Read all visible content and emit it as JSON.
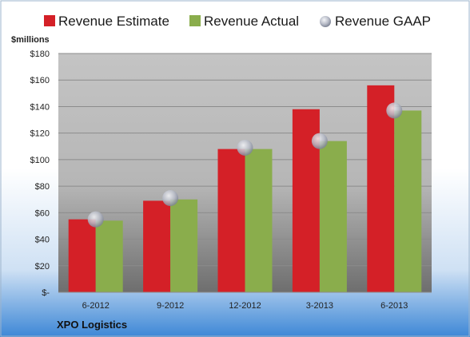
{
  "colors": {
    "estimate": "#d42027",
    "actual": "#8aad4c",
    "gaap_marker": "#b8bcc8",
    "grid": "#8c8c8c",
    "background_top": "#ffffff",
    "background_bottom": "#3d87d6",
    "plot_top": "#c4c4c4",
    "plot_bottom": "#6e6e6e"
  },
  "company": "XPO Logistics",
  "chart_data": {
    "type": "bar",
    "title": "",
    "xlabel": "",
    "ylabel": "$millions",
    "ylim": [
      0,
      180
    ],
    "y_ticks": [
      0,
      20,
      40,
      60,
      80,
      100,
      120,
      140,
      160,
      180
    ],
    "y_tick_labels": [
      "$-",
      "$20",
      "$40",
      "$60",
      "$80",
      "$100",
      "$120",
      "$140",
      "$160",
      "$180"
    ],
    "grid": true,
    "legend_position": "top",
    "categories": [
      "6-2012",
      "9-2012",
      "12-2012",
      "3-2013",
      "6-2013"
    ],
    "series": [
      {
        "name": "Revenue Estimate",
        "kind": "bar",
        "values": [
          55,
          69,
          108,
          138,
          156
        ]
      },
      {
        "name": "Revenue Actual",
        "kind": "bar",
        "values": [
          54,
          70,
          108,
          114,
          137
        ]
      },
      {
        "name": "Revenue GAAP",
        "kind": "marker",
        "values": [
          55,
          71,
          109,
          114,
          137
        ]
      }
    ]
  }
}
